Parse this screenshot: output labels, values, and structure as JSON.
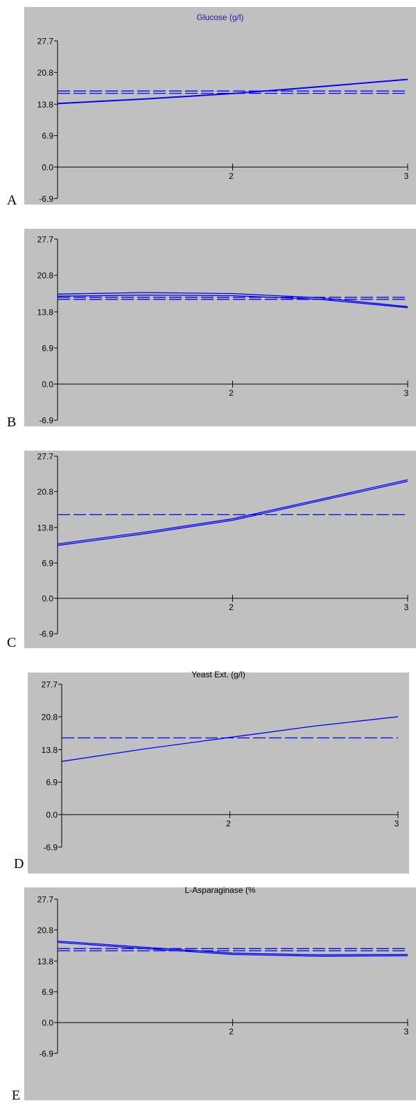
{
  "colors": {
    "background": "#c0c0c0",
    "series": "#0000ff",
    "axis": "#000000",
    "page": "#ffffff"
  },
  "chart_data": [
    {
      "panel": "A",
      "type": "line",
      "title": "Glucose (g/l)",
      "ylim": [
        -6.9,
        27.7
      ],
      "yticks": [
        "27.7",
        "20.8",
        "13.8",
        "6.9",
        "0.0",
        "-6.9"
      ],
      "xlim": [
        1,
        3
      ],
      "xticks": [
        "2",
        "3"
      ],
      "grid": false,
      "series": [
        {
          "style": "solid",
          "x": [
            1,
            1.5,
            2,
            2.5,
            3
          ],
          "y": [
            13.9,
            14.9,
            16.1,
            17.6,
            19.2
          ]
        },
        {
          "style": "solid",
          "x": [
            1,
            1.5,
            2,
            2.5,
            3
          ],
          "y": [
            14.0,
            15.0,
            16.2,
            17.7,
            19.3
          ]
        },
        {
          "style": "dashed",
          "x": [
            1,
            3
          ],
          "y": [
            16.2,
            16.2
          ]
        },
        {
          "style": "dashed",
          "x": [
            1,
            3
          ],
          "y": [
            16.7,
            16.7
          ]
        }
      ]
    },
    {
      "panel": "B",
      "type": "line",
      "title": "",
      "ylim": [
        -6.9,
        27.7
      ],
      "yticks": [
        "27.7",
        "20.8",
        "13.8",
        "6.9",
        "0.0",
        "-6.9"
      ],
      "xlim": [
        1,
        3
      ],
      "xticks": [
        "2",
        "3"
      ],
      "grid": false,
      "series": [
        {
          "style": "solid",
          "x": [
            1,
            1.5,
            2,
            2.5,
            3
          ],
          "y": [
            17.2,
            17.5,
            17.3,
            16.5,
            14.8
          ]
        },
        {
          "style": "solid",
          "x": [
            1,
            1.5,
            2,
            2.5,
            3
          ],
          "y": [
            16.8,
            17.0,
            16.9,
            16.2,
            14.6
          ]
        },
        {
          "style": "dashed",
          "x": [
            1,
            3
          ],
          "y": [
            16.2,
            16.2
          ]
        },
        {
          "style": "dashed",
          "x": [
            1,
            3
          ],
          "y": [
            16.6,
            16.6
          ]
        }
      ]
    },
    {
      "panel": "C",
      "type": "line",
      "title": "",
      "ylim": [
        -6.9,
        27.7
      ],
      "yticks": [
        "27.7",
        "20.8",
        "13.8",
        "6.9",
        "0.0",
        "-6.9"
      ],
      "xlim": [
        1,
        3
      ],
      "xticks": [
        "2",
        "3"
      ],
      "grid": false,
      "series": [
        {
          "style": "solid",
          "x": [
            1,
            1.5,
            2,
            2.5,
            3
          ],
          "y": [
            10.3,
            12.6,
            15.2,
            19.0,
            22.8
          ]
        },
        {
          "style": "solid",
          "x": [
            1,
            1.5,
            2,
            2.5,
            3
          ],
          "y": [
            10.6,
            12.9,
            15.5,
            19.3,
            23.1
          ]
        },
        {
          "style": "dashed",
          "x": [
            1,
            3
          ],
          "y": [
            16.3,
            16.3
          ]
        }
      ]
    },
    {
      "panel": "D",
      "type": "line",
      "title": "Yeast Ext. (g/l)",
      "ylim": [
        -6.9,
        27.7
      ],
      "yticks": [
        "27.7",
        "20.8",
        "13.8",
        "6.9",
        "0.0",
        "-6.9"
      ],
      "xlim": [
        1,
        3
      ],
      "xticks": [
        "2",
        "3"
      ],
      "grid": false,
      "series": [
        {
          "style": "solid",
          "x": [
            1,
            1.5,
            2,
            2.5,
            3
          ],
          "y": [
            11.3,
            14.0,
            16.4,
            18.8,
            20.8
          ]
        },
        {
          "style": "dashed",
          "x": [
            1,
            3
          ],
          "y": [
            16.3,
            16.3
          ]
        }
      ]
    },
    {
      "panel": "E",
      "type": "line",
      "title": "L-Asparaginase (%",
      "ylim": [
        -6.9,
        27.7
      ],
      "yticks": [
        "27.7",
        "20.8",
        "13.8",
        "6.9",
        "0.0",
        "-6.9"
      ],
      "xlim": [
        1,
        3
      ],
      "xticks": [
        "2",
        "3"
      ],
      "grid": false,
      "series": [
        {
          "style": "solid",
          "x": [
            1,
            1.5,
            2,
            2.5,
            3
          ],
          "y": [
            18.3,
            16.9,
            15.6,
            15.2,
            15.3
          ]
        },
        {
          "style": "solid",
          "x": [
            1,
            1.5,
            2,
            2.5,
            3
          ],
          "y": [
            18.0,
            16.6,
            15.3,
            14.9,
            15.0
          ]
        },
        {
          "style": "dashed",
          "x": [
            1,
            3
          ],
          "y": [
            16.1,
            16.1
          ]
        },
        {
          "style": "dashed",
          "x": [
            1,
            3
          ],
          "y": [
            16.6,
            16.6
          ]
        }
      ]
    }
  ]
}
